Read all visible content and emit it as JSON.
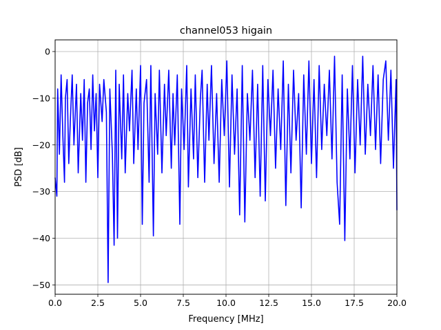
{
  "chart_data": {
    "type": "line",
    "title": "channel053 higain",
    "xlabel": "Frequency [MHz]",
    "ylabel": "PSD [dB]",
    "xlim": [
      0,
      20
    ],
    "ylim": [
      -52,
      2.5
    ],
    "xticks": [
      0,
      2.5,
      5,
      7.5,
      10,
      12.5,
      15,
      17.5,
      20
    ],
    "xtick_labels": [
      "0.0",
      "2.5",
      "5.0",
      "7.5",
      "10.0",
      "12.5",
      "15.0",
      "17.5",
      "20.0"
    ],
    "yticks": [
      0,
      -10,
      -20,
      -30,
      -40,
      -50
    ],
    "ytick_labels": [
      "0",
      "−10",
      "−20",
      "−30",
      "−40",
      "−50"
    ],
    "grid": true,
    "legend": "none",
    "series": [
      {
        "color": "#0000ff",
        "x": [
          0,
          0.1,
          0.15,
          0.25,
          0.35,
          0.45,
          0.55,
          0.6,
          0.7,
          0.8,
          0.9,
          1.0,
          1.1,
          1.25,
          1.35,
          1.5,
          1.6,
          1.7,
          1.8,
          1.9,
          2.0,
          2.1,
          2.2,
          2.3,
          2.4,
          2.5,
          2.6,
          2.75,
          2.85,
          3.0,
          3.1,
          3.2,
          3.35,
          3.45,
          3.55,
          3.65,
          3.75,
          3.9,
          4.0,
          4.1,
          4.25,
          4.35,
          4.5,
          4.6,
          4.75,
          4.85,
          5.0,
          5.1,
          5.2,
          5.35,
          5.5,
          5.6,
          5.75,
          5.85,
          6.0,
          6.1,
          6.25,
          6.4,
          6.5,
          6.65,
          6.8,
          6.9,
          7.0,
          7.15,
          7.3,
          7.4,
          7.55,
          7.7,
          7.8,
          7.95,
          8.1,
          8.2,
          8.35,
          8.5,
          8.6,
          8.75,
          8.9,
          9.0,
          9.15,
          9.3,
          9.45,
          9.6,
          9.75,
          9.9,
          10.05,
          10.2,
          10.35,
          10.5,
          10.65,
          10.8,
          10.95,
          11.1,
          11.25,
          11.4,
          11.55,
          11.7,
          11.85,
          12.0,
          12.15,
          12.3,
          12.45,
          12.6,
          12.75,
          12.9,
          13.05,
          13.2,
          13.35,
          13.5,
          13.65,
          13.8,
          13.95,
          14.1,
          14.25,
          14.4,
          14.55,
          14.7,
          14.85,
          15.0,
          15.15,
          15.3,
          15.45,
          15.6,
          15.75,
          15.9,
          16.05,
          16.2,
          16.35,
          16.5,
          16.65,
          16.8,
          16.95,
          17.1,
          17.25,
          17.4,
          17.55,
          17.7,
          17.85,
          18.0,
          18.15,
          18.3,
          18.45,
          18.6,
          18.75,
          18.9,
          19.05,
          19.2,
          19.35,
          19.5,
          19.65,
          19.8,
          19.95,
          20.0
        ],
        "y": [
          -27,
          -31,
          -8,
          -22,
          -5,
          -18,
          -28,
          -10,
          -6,
          -24,
          -14,
          -5,
          -20,
          -7,
          -26,
          -9,
          -19,
          -6,
          -28,
          -11,
          -8,
          -21,
          -5,
          -17,
          -9,
          -27,
          -7,
          -15,
          -6,
          -13,
          -49.5,
          -8,
          -22,
          -41.5,
          -4,
          -40,
          -7,
          -23,
          -5,
          -26,
          -9,
          -17,
          -4,
          -24,
          -8,
          -21,
          -3,
          -37,
          -11,
          -6,
          -28,
          -3,
          -39.5,
          -9,
          -22,
          -4,
          -26,
          -7,
          -18,
          -4,
          -25,
          -9,
          -20,
          -5,
          -37,
          -8,
          -21,
          -3,
          -29,
          -8,
          -23,
          -5,
          -27,
          -10,
          -4,
          -28,
          -7,
          -19,
          -3,
          -24,
          -9,
          -28,
          -6,
          -18,
          -2,
          -29,
          -5,
          -22,
          -8,
          -35,
          -3,
          -36.5,
          -9,
          -19,
          -4,
          -27,
          -7,
          -31,
          -3,
          -32,
          -6,
          -18,
          -4,
          -25,
          -8,
          -21,
          -2,
          -33,
          -7,
          -26,
          -4,
          -19,
          -9,
          -33.5,
          -5,
          -22,
          -2,
          -24,
          -6,
          -27,
          -3,
          -21,
          -7,
          -18,
          -4,
          -23,
          -1,
          -28,
          -37,
          -5,
          -40.5,
          -8,
          -23,
          -3,
          -26,
          -6,
          -20,
          -1,
          -22,
          -7,
          -18,
          -3,
          -21,
          -5,
          -24,
          -6,
          -2,
          -19,
          -4,
          -25,
          -6,
          -34
        ]
      }
    ]
  }
}
